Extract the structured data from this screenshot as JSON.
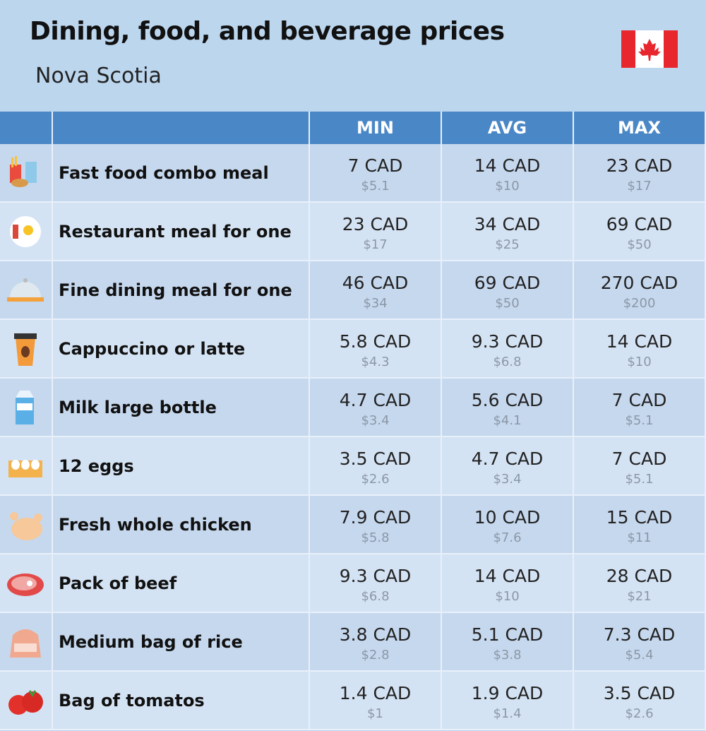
{
  "header": {
    "title": "Dining, food, and beverage prices",
    "subtitle": "Nova Scotia"
  },
  "table": {
    "columns": [
      "MIN",
      "AVG",
      "MAX"
    ],
    "rows": [
      {
        "label": "Fast food combo meal",
        "min": {
          "local": "7 CAD",
          "usd": "$5.1"
        },
        "avg": {
          "local": "14 CAD",
          "usd": "$10"
        },
        "max": {
          "local": "23 CAD",
          "usd": "$17"
        }
      },
      {
        "label": "Restaurant meal for one",
        "min": {
          "local": "23 CAD",
          "usd": "$17"
        },
        "avg": {
          "local": "34 CAD",
          "usd": "$25"
        },
        "max": {
          "local": "69 CAD",
          "usd": "$50"
        }
      },
      {
        "label": "Fine dining meal for one",
        "min": {
          "local": "46 CAD",
          "usd": "$34"
        },
        "avg": {
          "local": "69 CAD",
          "usd": "$50"
        },
        "max": {
          "local": "270 CAD",
          "usd": "$200"
        }
      },
      {
        "label": "Cappuccino or latte",
        "min": {
          "local": "5.8 CAD",
          "usd": "$4.3"
        },
        "avg": {
          "local": "9.3 CAD",
          "usd": "$6.8"
        },
        "max": {
          "local": "14 CAD",
          "usd": "$10"
        }
      },
      {
        "label": "Milk large bottle",
        "min": {
          "local": "4.7 CAD",
          "usd": "$3.4"
        },
        "avg": {
          "local": "5.6 CAD",
          "usd": "$4.1"
        },
        "max": {
          "local": "7 CAD",
          "usd": "$5.1"
        }
      },
      {
        "label": "12 eggs",
        "min": {
          "local": "3.5 CAD",
          "usd": "$2.6"
        },
        "avg": {
          "local": "4.7 CAD",
          "usd": "$3.4"
        },
        "max": {
          "local": "7 CAD",
          "usd": "$5.1"
        }
      },
      {
        "label": "Fresh whole chicken",
        "min": {
          "local": "7.9 CAD",
          "usd": "$5.8"
        },
        "avg": {
          "local": "10 CAD",
          "usd": "$7.6"
        },
        "max": {
          "local": "15 CAD",
          "usd": "$11"
        }
      },
      {
        "label": "Pack of beef",
        "min": {
          "local": "9.3 CAD",
          "usd": "$6.8"
        },
        "avg": {
          "local": "14 CAD",
          "usd": "$10"
        },
        "max": {
          "local": "28 CAD",
          "usd": "$21"
        }
      },
      {
        "label": "Medium bag of rice",
        "min": {
          "local": "3.8 CAD",
          "usd": "$2.8"
        },
        "avg": {
          "local": "5.1 CAD",
          "usd": "$3.8"
        },
        "max": {
          "local": "7.3 CAD",
          "usd": "$5.4"
        }
      },
      {
        "label": "Bag of tomatos",
        "min": {
          "local": "1.4 CAD",
          "usd": "$1"
        },
        "avg": {
          "local": "1.9 CAD",
          "usd": "$1.4"
        },
        "max": {
          "local": "3.5 CAD",
          "usd": "$2.6"
        }
      }
    ]
  }
}
